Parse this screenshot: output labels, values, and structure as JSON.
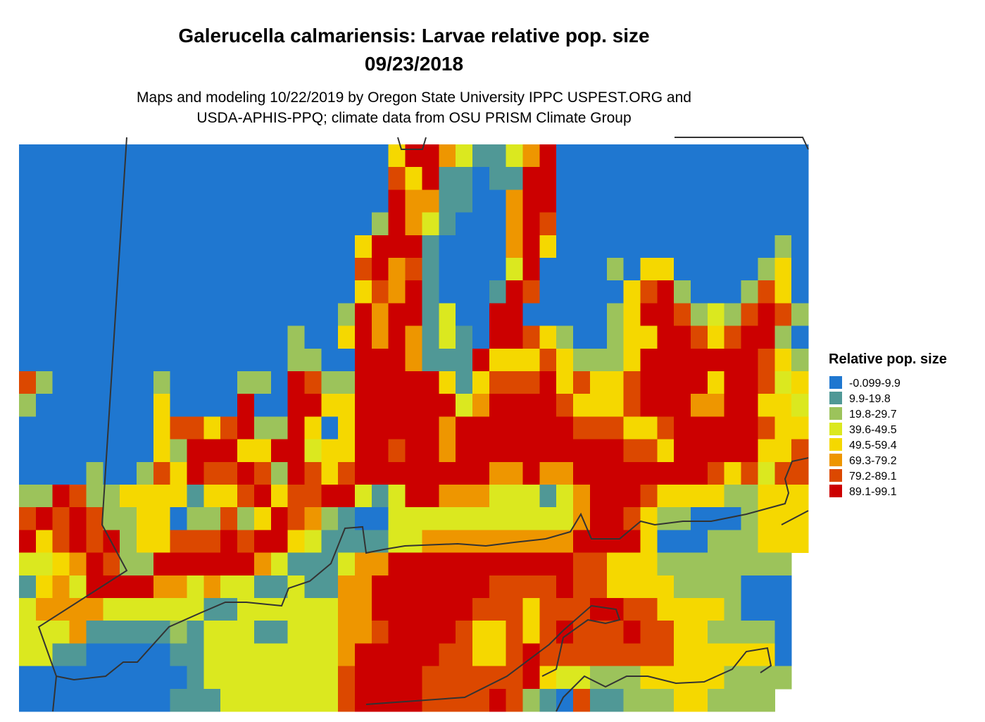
{
  "title": "Galerucella calmariensis: Larvae relative pop. size",
  "date": "09/23/2018",
  "subtitle": [
    "Maps and modeling 10/22/2019 by Oregon State University IPPC USPEST.ORG and",
    "USDA-APHIS-PPQ; climate data from OSU PRISM Climate Group"
  ],
  "legend": {
    "title": "Relative pop. size",
    "items": [
      {
        "label": "-0.099-9.9",
        "color": "#1f77d0"
      },
      {
        "label": "9.9-19.8",
        "color": "#509896"
      },
      {
        "label": "19.8-29.7",
        "color": "#9cc35b"
      },
      {
        "label": "39.6-49.5",
        "color": "#dbe81f"
      },
      {
        "label": "49.5-59.4",
        "color": "#f5d800"
      },
      {
        "label": "69.3-79.2",
        "color": "#ee9600"
      },
      {
        "label": "79.2-89.1",
        "color": "#dc4800"
      },
      {
        "label": "89.1-99.1",
        "color": "#cc0000"
      }
    ]
  },
  "map": {
    "grid": [
      [
        0,
        0,
        0,
        0,
        0,
        0,
        0,
        0,
        0,
        0,
        0,
        0,
        0,
        0,
        0,
        0,
        0,
        0,
        0,
        0,
        0,
        0,
        4,
        7,
        7,
        5,
        3,
        1,
        1,
        3,
        5,
        7,
        0,
        0,
        0,
        0,
        0,
        0,
        0,
        0,
        0,
        0,
        0,
        0,
        0,
        0,
        0
      ],
      [
        0,
        0,
        0,
        0,
        0,
        0,
        0,
        0,
        0,
        0,
        0,
        0,
        0,
        0,
        0,
        0,
        0,
        0,
        0,
        0,
        0,
        0,
        6,
        4,
        7,
        1,
        1,
        0,
        1,
        1,
        7,
        7,
        0,
        0,
        0,
        0,
        0,
        0,
        0,
        0,
        0,
        0,
        0,
        0,
        0,
        0,
        0
      ],
      [
        0,
        0,
        0,
        0,
        0,
        0,
        0,
        0,
        0,
        0,
        0,
        0,
        0,
        0,
        0,
        0,
        0,
        0,
        0,
        0,
        0,
        0,
        7,
        5,
        5,
        1,
        1,
        0,
        0,
        5,
        7,
        7,
        0,
        0,
        0,
        0,
        0,
        0,
        0,
        0,
        0,
        0,
        0,
        0,
        0,
        0,
        0
      ],
      [
        0,
        0,
        0,
        0,
        0,
        0,
        0,
        0,
        0,
        0,
        0,
        0,
        0,
        0,
        0,
        0,
        0,
        0,
        0,
        0,
        0,
        2,
        7,
        5,
        3,
        1,
        0,
        0,
        0,
        5,
        7,
        6,
        0,
        0,
        0,
        0,
        0,
        0,
        0,
        0,
        0,
        0,
        0,
        0,
        0,
        0,
        0
      ],
      [
        0,
        0,
        0,
        0,
        0,
        0,
        0,
        0,
        0,
        0,
        0,
        0,
        0,
        0,
        0,
        0,
        0,
        0,
        0,
        0,
        4,
        7,
        7,
        7,
        1,
        0,
        0,
        0,
        0,
        5,
        7,
        4,
        0,
        0,
        0,
        0,
        0,
        0,
        0,
        0,
        0,
        0,
        0,
        0,
        0,
        2,
        0
      ],
      [
        0,
        0,
        0,
        0,
        0,
        0,
        0,
        0,
        0,
        0,
        0,
        0,
        0,
        0,
        0,
        0,
        0,
        0,
        0,
        0,
        6,
        7,
        5,
        6,
        1,
        0,
        0,
        0,
        0,
        3,
        7,
        0,
        0,
        0,
        0,
        2,
        0,
        4,
        4,
        0,
        0,
        0,
        0,
        0,
        2,
        4,
        0
      ],
      [
        0,
        0,
        0,
        0,
        0,
        0,
        0,
        0,
        0,
        0,
        0,
        0,
        0,
        0,
        0,
        0,
        0,
        0,
        0,
        0,
        4,
        6,
        5,
        7,
        1,
        0,
        0,
        0,
        1,
        7,
        6,
        0,
        0,
        0,
        0,
        0,
        4,
        6,
        7,
        2,
        0,
        0,
        0,
        2,
        6,
        4,
        0
      ],
      [
        0,
        0,
        0,
        0,
        0,
        0,
        0,
        0,
        0,
        0,
        0,
        0,
        0,
        0,
        0,
        0,
        0,
        0,
        0,
        2,
        7,
        5,
        7,
        7,
        1,
        3,
        0,
        0,
        7,
        7,
        0,
        0,
        0,
        0,
        0,
        2,
        4,
        7,
        7,
        6,
        2,
        3,
        2,
        6,
        7,
        6,
        2
      ],
      [
        0,
        0,
        0,
        0,
        0,
        0,
        0,
        0,
        0,
        0,
        0,
        0,
        0,
        0,
        0,
        0,
        2,
        0,
        0,
        4,
        7,
        5,
        7,
        5,
        1,
        3,
        1,
        0,
        7,
        7,
        6,
        4,
        2,
        0,
        0,
        2,
        4,
        4,
        7,
        7,
        6,
        4,
        6,
        7,
        7,
        2,
        0
      ],
      [
        0,
        0,
        0,
        0,
        0,
        0,
        0,
        0,
        0,
        0,
        0,
        0,
        0,
        0,
        0,
        0,
        2,
        2,
        0,
        0,
        7,
        7,
        7,
        5,
        1,
        1,
        1,
        7,
        4,
        4,
        4,
        6,
        4,
        2,
        2,
        2,
        4,
        7,
        7,
        7,
        7,
        7,
        7,
        7,
        6,
        4,
        2
      ],
      [
        6,
        2,
        0,
        0,
        0,
        0,
        0,
        0,
        2,
        0,
        0,
        0,
        0,
        2,
        2,
        0,
        7,
        6,
        2,
        2,
        7,
        7,
        7,
        7,
        7,
        4,
        1,
        4,
        6,
        6,
        6,
        7,
        4,
        6,
        4,
        4,
        6,
        7,
        7,
        7,
        7,
        4,
        7,
        7,
        6,
        3,
        4
      ],
      [
        2,
        0,
        0,
        0,
        0,
        0,
        0,
        0,
        4,
        0,
        0,
        0,
        0,
        7,
        0,
        0,
        7,
        7,
        4,
        4,
        7,
        7,
        7,
        7,
        7,
        7,
        3,
        5,
        7,
        7,
        7,
        7,
        6,
        4,
        4,
        4,
        6,
        7,
        7,
        7,
        5,
        5,
        7,
        7,
        4,
        4,
        3
      ],
      [
        0,
        0,
        0,
        0,
        0,
        0,
        0,
        0,
        4,
        6,
        6,
        4,
        6,
        7,
        2,
        2,
        7,
        4,
        0,
        4,
        7,
        7,
        7,
        7,
        7,
        5,
        7,
        7,
        7,
        7,
        7,
        7,
        7,
        6,
        6,
        6,
        4,
        4,
        6,
        7,
        7,
        7,
        7,
        7,
        6,
        4,
        4
      ],
      [
        0,
        0,
        0,
        0,
        0,
        0,
        0,
        0,
        4,
        2,
        7,
        7,
        7,
        4,
        4,
        7,
        7,
        3,
        4,
        4,
        7,
        7,
        6,
        7,
        7,
        5,
        7,
        7,
        7,
        7,
        7,
        7,
        7,
        7,
        7,
        7,
        6,
        6,
        4,
        7,
        7,
        7,
        7,
        7,
        4,
        4,
        6
      ],
      [
        0,
        0,
        0,
        0,
        2,
        0,
        0,
        2,
        6,
        4,
        7,
        6,
        6,
        7,
        6,
        2,
        7,
        6,
        4,
        6,
        7,
        7,
        7,
        7,
        7,
        7,
        7,
        7,
        5,
        5,
        7,
        5,
        5,
        7,
        7,
        7,
        7,
        7,
        7,
        7,
        7,
        6,
        4,
        6,
        3,
        6,
        6
      ],
      [
        2,
        2,
        7,
        6,
        2,
        2,
        4,
        4,
        4,
        4,
        1,
        4,
        4,
        6,
        7,
        4,
        6,
        6,
        7,
        7,
        3,
        1,
        3,
        7,
        7,
        5,
        5,
        5,
        3,
        3,
        3,
        1,
        3,
        5,
        7,
        7,
        7,
        6,
        4,
        4,
        4,
        4,
        2,
        2,
        4,
        4,
        4
      ],
      [
        6,
        7,
        6,
        7,
        6,
        2,
        2,
        4,
        4,
        0,
        2,
        2,
        6,
        2,
        4,
        7,
        6,
        5,
        2,
        1,
        0,
        0,
        3,
        3,
        3,
        3,
        3,
        3,
        3,
        3,
        3,
        3,
        3,
        5,
        7,
        7,
        6,
        4,
        2,
        2,
        0,
        0,
        0,
        2,
        4,
        4,
        4
      ],
      [
        7,
        4,
        6,
        7,
        6,
        7,
        2,
        4,
        4,
        6,
        6,
        6,
        7,
        6,
        7,
        7,
        4,
        3,
        1,
        1,
        1,
        1,
        3,
        3,
        5,
        5,
        5,
        5,
        5,
        5,
        5,
        5,
        5,
        7,
        7,
        7,
        7,
        4,
        0,
        0,
        0,
        2,
        2,
        2,
        4,
        4,
        4
      ],
      [
        3,
        3,
        4,
        5,
        7,
        6,
        2,
        2,
        7,
        7,
        7,
        7,
        7,
        7,
        5,
        3,
        1,
        1,
        1,
        3,
        5,
        5,
        7,
        7,
        7,
        7,
        7,
        7,
        7,
        7,
        7,
        7,
        7,
        6,
        6,
        4,
        4,
        4,
        2,
        2,
        2,
        2,
        2,
        2,
        2,
        2,
        null
      ],
      [
        1,
        4,
        5,
        3,
        7,
        7,
        7,
        7,
        5,
        5,
        3,
        5,
        3,
        3,
        1,
        1,
        3,
        1,
        1,
        5,
        5,
        7,
        7,
        7,
        7,
        7,
        7,
        7,
        6,
        6,
        6,
        6,
        7,
        6,
        6,
        4,
        4,
        4,
        4,
        2,
        2,
        2,
        2,
        0,
        0,
        0,
        null
      ],
      [
        3,
        5,
        5,
        5,
        5,
        3,
        3,
        3,
        3,
        3,
        3,
        1,
        1,
        3,
        3,
        3,
        3,
        3,
        3,
        5,
        5,
        7,
        7,
        7,
        7,
        7,
        7,
        6,
        6,
        6,
        4,
        6,
        6,
        6,
        7,
        7,
        6,
        6,
        4,
        4,
        4,
        4,
        2,
        0,
        0,
        0,
        null
      ],
      [
        3,
        3,
        3,
        5,
        1,
        1,
        1,
        1,
        1,
        2,
        1,
        3,
        3,
        3,
        1,
        1,
        3,
        3,
        3,
        5,
        5,
        6,
        7,
        7,
        7,
        7,
        6,
        4,
        4,
        6,
        4,
        6,
        7,
        6,
        6,
        6,
        7,
        6,
        6,
        4,
        4,
        2,
        2,
        2,
        2,
        0,
        null
      ],
      [
        3,
        3,
        1,
        1,
        0,
        0,
        0,
        0,
        0,
        1,
        1,
        3,
        3,
        3,
        3,
        3,
        3,
        3,
        3,
        5,
        7,
        7,
        7,
        7,
        7,
        6,
        6,
        4,
        4,
        6,
        7,
        6,
        6,
        6,
        6,
        6,
        6,
        6,
        6,
        4,
        4,
        4,
        4,
        4,
        4,
        0,
        null
      ],
      [
        0,
        0,
        0,
        0,
        0,
        0,
        0,
        0,
        0,
        0,
        1,
        3,
        3,
        3,
        3,
        3,
        3,
        3,
        3,
        6,
        7,
        7,
        7,
        7,
        6,
        6,
        6,
        6,
        6,
        6,
        7,
        4,
        3,
        3,
        2,
        2,
        2,
        4,
        4,
        4,
        4,
        4,
        2,
        2,
        2,
        2,
        null
      ],
      [
        0,
        0,
        0,
        0,
        0,
        0,
        0,
        0,
        0,
        1,
        1,
        1,
        3,
        3,
        3,
        3,
        3,
        3,
        3,
        6,
        7,
        7,
        7,
        7,
        6,
        6,
        6,
        6,
        7,
        6,
        2,
        1,
        0,
        6,
        1,
        1,
        2,
        2,
        2,
        4,
        4,
        2,
        2,
        2,
        2,
        null,
        null
      ]
    ]
  }
}
